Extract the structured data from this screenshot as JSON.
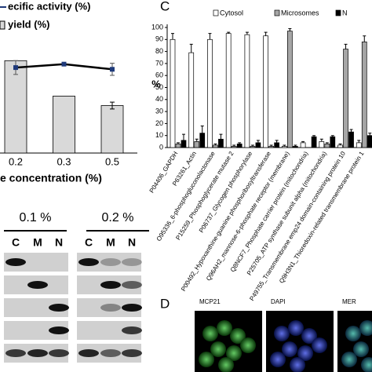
{
  "chart_data": [
    {
      "type": "bar_line",
      "x_label": "e concentration (%)",
      "categories": [
        "0.2",
        "0.3",
        "0.5"
      ],
      "ylim": [
        0,
        120
      ],
      "series": [
        {
          "name": "ecific activity (%)",
          "type": "line",
          "color": "#1f3a7a",
          "values": [
            99,
            103,
            97
          ],
          "errors": [
            8,
            2,
            7
          ]
        },
        {
          "name": "yield (%)",
          "type": "bar",
          "color": "#d9d9d9",
          "values": [
            107,
            66,
            55
          ],
          "errors": [
            0,
            0,
            4
          ]
        }
      ]
    },
    {
      "type": "bar",
      "panel": "C",
      "y_label": "%",
      "categories": [
        "P04406_GAPDH",
        "P63261_Actin",
        "O95336_6-phosphogluconolactonase",
        "P15259_Phosphoglycerate mutase 2",
        "P06737_Glycogen phosphorylase",
        "P00492_Hypoxanthine-guanine phosphoribosyltransferase",
        "Q96AH2_mannose-6-phosphate receptor (membrane)",
        "Q8NCF7_Phosphate carrier protein (mitochondria)",
        "P25705_ATP synthase subunit alpha (mitochondria)",
        "P49755_Transmembrane emp24 domain-containing protein 10",
        "Q9H3N1_Thioredoxin-related transmembrane protein 1"
      ],
      "ylim": [
        0,
        100
      ],
      "yticks": [
        0,
        10,
        20,
        30,
        40,
        50,
        60,
        70,
        80,
        90,
        100
      ],
      "series": [
        {
          "name": "Cytosol",
          "color": "#ffffff",
          "values": [
            90,
            79,
            90,
            95,
            94,
            93,
            1,
            4,
            5,
            2,
            4
          ],
          "errors": [
            5,
            7,
            5,
            1,
            2,
            3,
            1,
            1,
            2,
            1,
            2
          ]
        },
        {
          "name": "Microsomes",
          "color": "#a6a6a6",
          "values": [
            3,
            5,
            2,
            1,
            1,
            1,
            97,
            0,
            3,
            82,
            88
          ],
          "errors": [
            1,
            2,
            1,
            1,
            1,
            1,
            2,
            0,
            1,
            4,
            5
          ]
        },
        {
          "name": "N",
          "color": "#000000",
          "values": [
            6,
            12,
            7,
            3,
            4,
            4,
            1,
            9,
            9,
            13,
            10
          ],
          "errors": [
            5,
            6,
            4,
            1,
            2,
            2,
            1,
            1,
            1,
            2,
            2
          ]
        }
      ]
    }
  ],
  "blot": {
    "headers": [
      "0.1 %",
      "0.2 %"
    ],
    "lanes": [
      "C",
      "M",
      "N",
      "C",
      "M",
      "N"
    ]
  },
  "panel_d": {
    "label": "D",
    "images": [
      "MCP21",
      "DAPI",
      "MER"
    ]
  }
}
